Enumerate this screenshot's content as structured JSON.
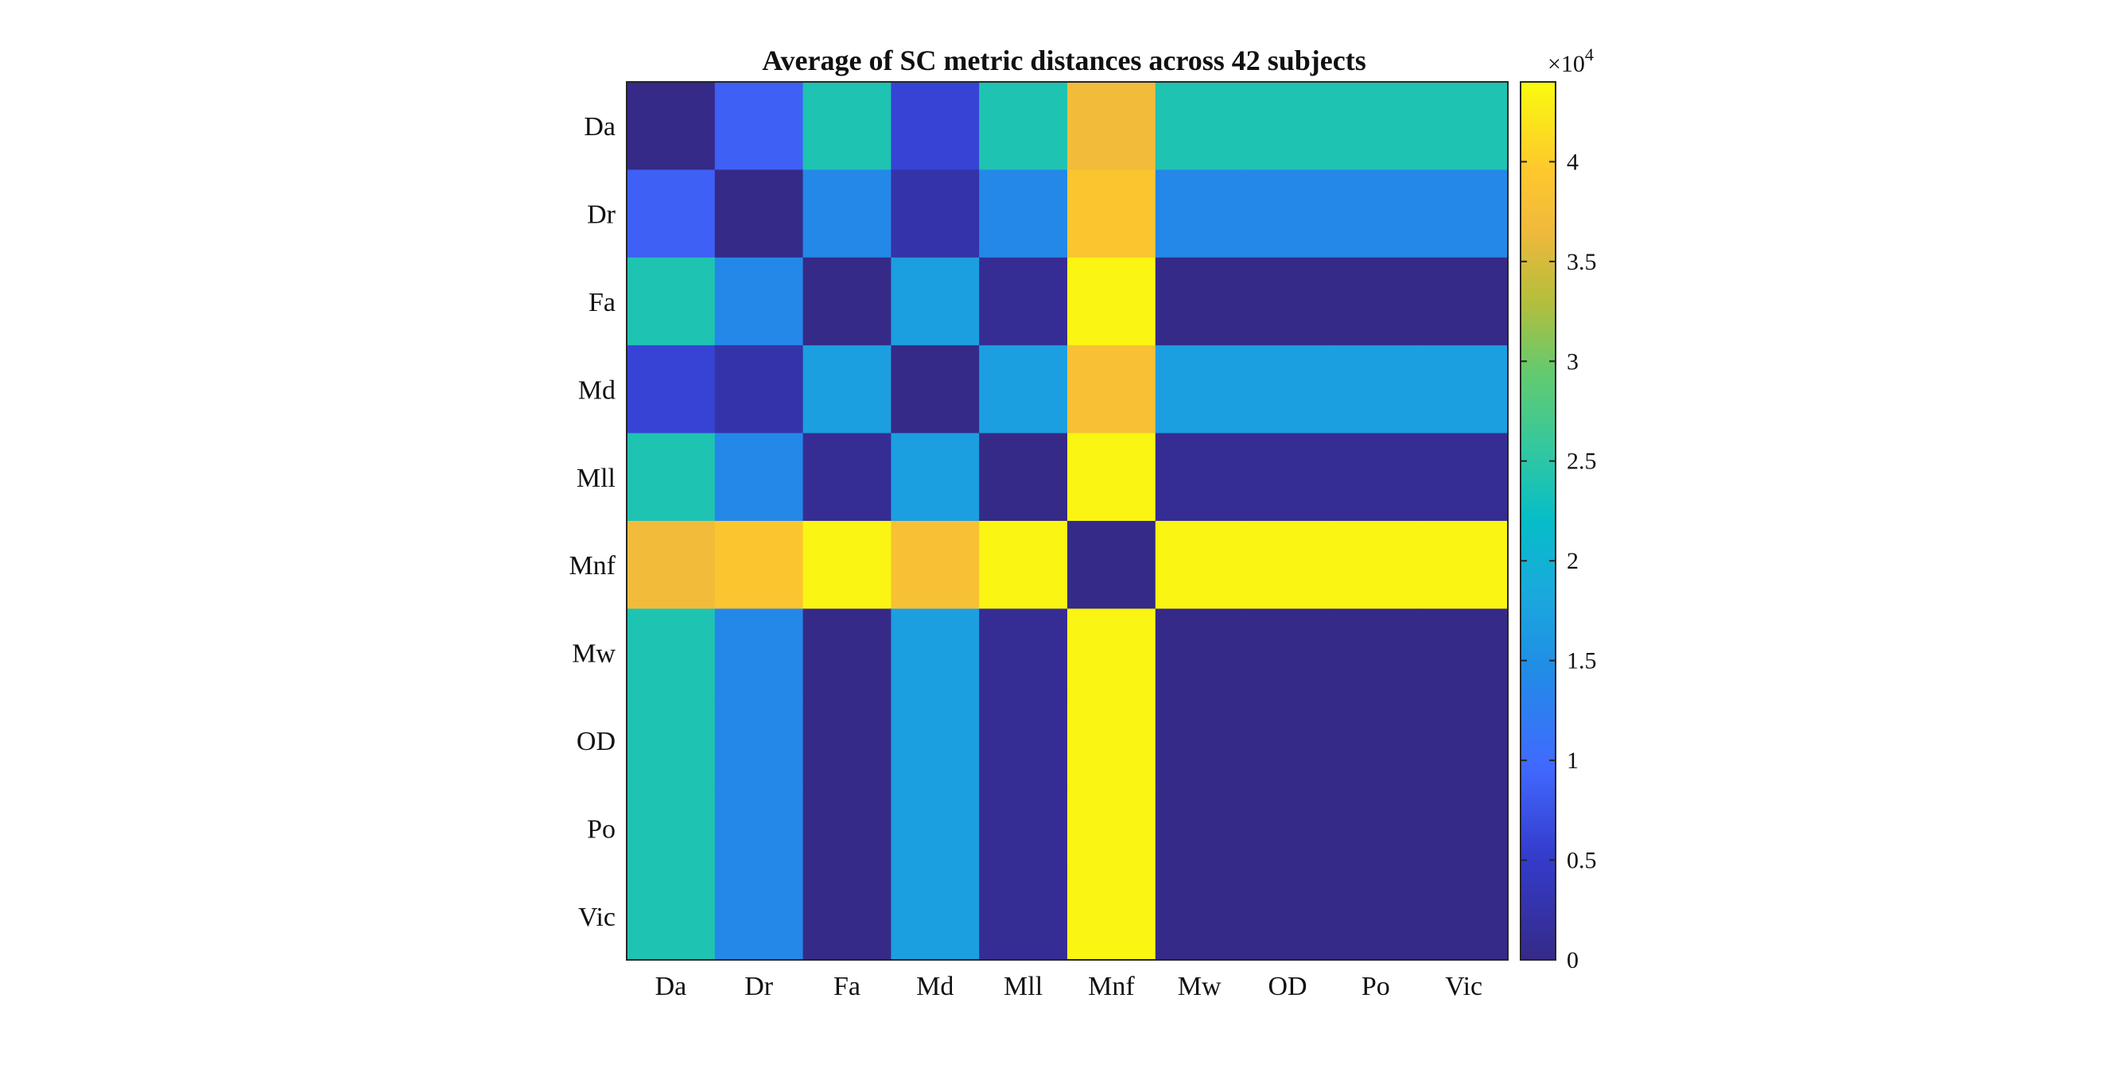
{
  "chart_data": {
    "type": "heatmap",
    "title": "Average of SC metric distances across 42 subjects",
    "x_categories": [
      "Da",
      "Dr",
      "Fa",
      "Md",
      "Mll",
      "Mnf",
      "Mw",
      "OD",
      "Po",
      "Vic"
    ],
    "y_categories": [
      "Da",
      "Dr",
      "Fa",
      "Md",
      "Mll",
      "Mnf",
      "Mw",
      "OD",
      "Po",
      "Vic"
    ],
    "values": [
      [
        0,
        8800,
        24000,
        6000,
        24000,
        37000,
        24000,
        24000,
        24000,
        24000
      ],
      [
        8800,
        0,
        14000,
        2500,
        14000,
        39000,
        14000,
        14000,
        14000,
        14000
      ],
      [
        24000,
        14000,
        0,
        17000,
        1000,
        43500,
        0,
        0,
        0,
        0
      ],
      [
        6000,
        2500,
        17000,
        0,
        17000,
        38000,
        17000,
        17000,
        17000,
        17000
      ],
      [
        24000,
        14000,
        1000,
        17000,
        0,
        43500,
        1000,
        1000,
        1000,
        1000
      ],
      [
        37000,
        39000,
        43500,
        38000,
        43500,
        0,
        43500,
        43500,
        43500,
        43500
      ],
      [
        24000,
        14000,
        0,
        17000,
        1000,
        43500,
        0,
        0,
        0,
        0
      ],
      [
        24000,
        14000,
        0,
        17000,
        1000,
        43500,
        0,
        0,
        0,
        0
      ],
      [
        24000,
        14000,
        0,
        17000,
        1000,
        43500,
        0,
        0,
        0,
        0
      ],
      [
        24000,
        14000,
        0,
        17000,
        1000,
        43500,
        0,
        0,
        0,
        0
      ]
    ],
    "colorbar": {
      "min": 0,
      "max": 44000,
      "exponent_label": "×10",
      "exponent": "4",
      "ticks": [
        {
          "value": 0,
          "label": "0"
        },
        {
          "value": 5000,
          "label": "0.5"
        },
        {
          "value": 10000,
          "label": "1"
        },
        {
          "value": 15000,
          "label": "1.5"
        },
        {
          "value": 20000,
          "label": "2"
        },
        {
          "value": 25000,
          "label": "2.5"
        },
        {
          "value": 30000,
          "label": "3"
        },
        {
          "value": 35000,
          "label": "3.5"
        },
        {
          "value": 40000,
          "label": "4"
        }
      ]
    },
    "colormap": "parula",
    "grid": false
  }
}
